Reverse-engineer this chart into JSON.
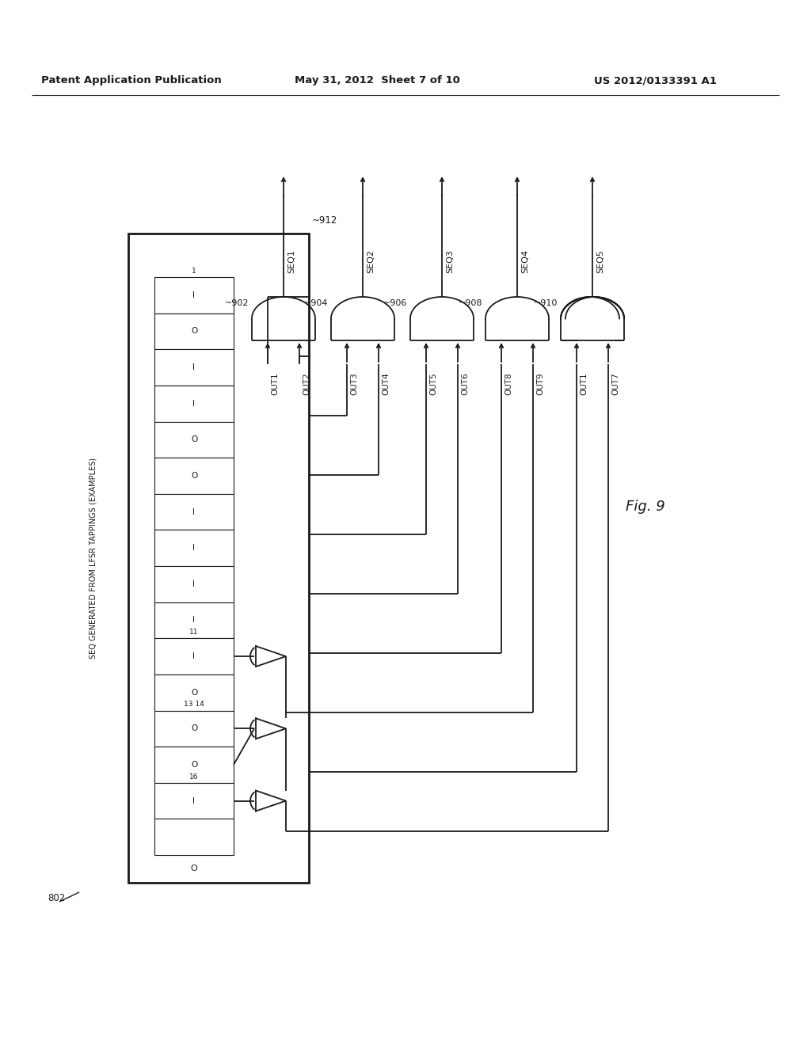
{
  "title_left": "Patent Application Publication",
  "title_mid": "May 31, 2012  Sheet 7 of 10",
  "title_right": "US 2012/0133391 A1",
  "fig_label": "Fig. 9",
  "fig_number": "802",
  "lfsr_label": "SEQ GENERATED FROM LFSR TAPPINGS (EXAMPLES)",
  "lfsr_ref": "~912",
  "lfsr_bits_top_row": [
    "I",
    "O",
    "I",
    "I",
    "O",
    "O",
    "I",
    "I",
    "I",
    "I",
    "O",
    "O",
    "O",
    "I",
    ""
  ],
  "lfsr_bits_bottom_row": [
    "O"
  ],
  "lfsr_cell_labels": [
    "1",
    "",
    "",
    "",
    "",
    "",
    "",
    "",
    "",
    "",
    "11",
    "",
    "13 14",
    "",
    "16"
  ],
  "gate_refs": [
    "902",
    "904",
    "906",
    "908",
    "910"
  ],
  "gate_seqs": [
    "SEQ1",
    "SEQ2",
    "SEQ3",
    "SEQ4",
    "SEQ5"
  ],
  "gate_inputs": [
    [
      "OUT1",
      "OUT2"
    ],
    [
      "OUT3",
      "OUT4"
    ],
    [
      "OUT5",
      "OUT6"
    ],
    [
      "OUT8",
      "OUT9"
    ],
    [
      "OUT1",
      "OUT7"
    ]
  ],
  "background_color": "#ffffff",
  "line_color": "#1a1a1a",
  "lw": 1.3
}
